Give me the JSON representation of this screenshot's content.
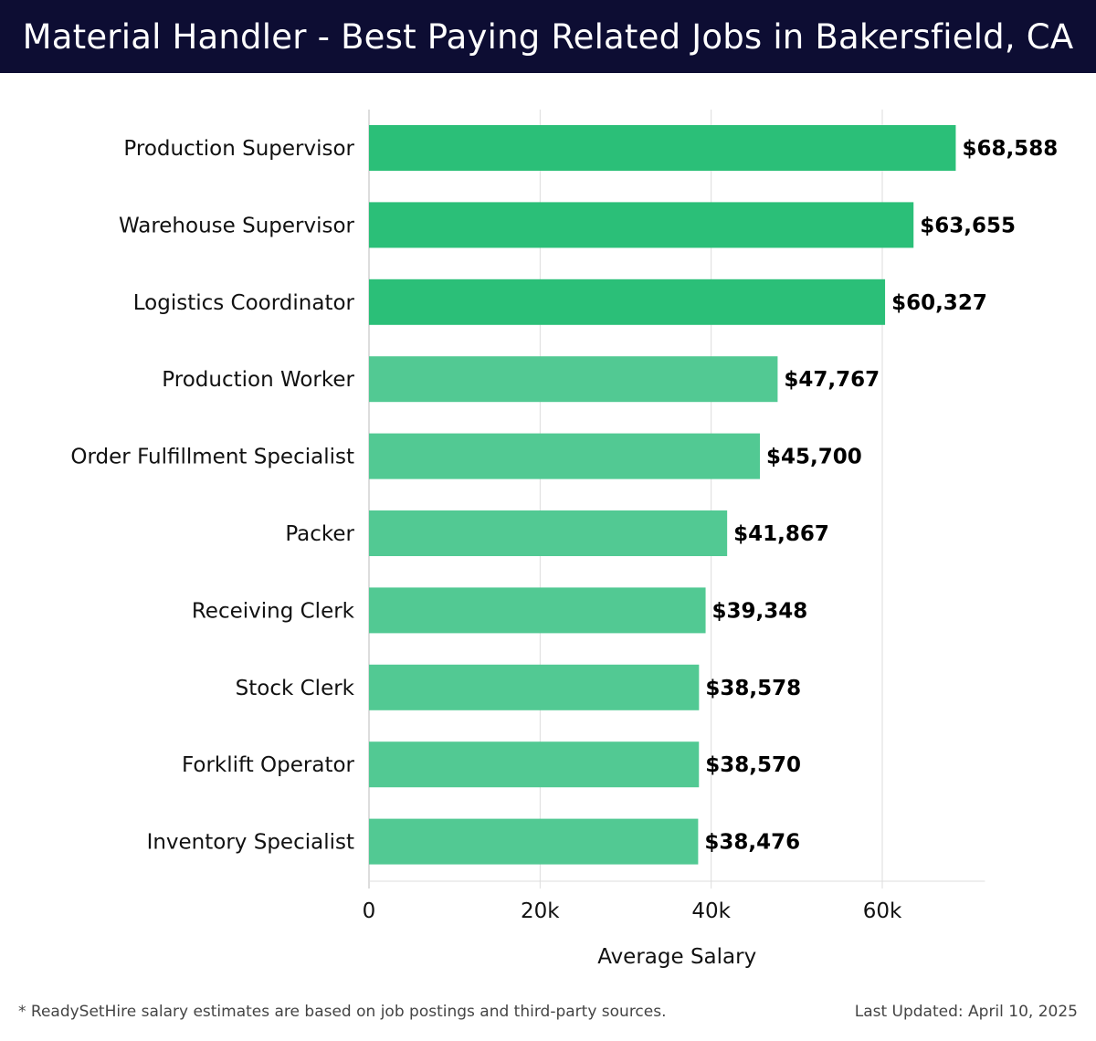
{
  "header": {
    "title": "Material Handler - Best Paying Related Jobs in Bakersfield, CA"
  },
  "footer": {
    "note": "* ReadySetHire salary estimates are based on job postings and third-party sources.",
    "updated": "Last Updated: April 10, 2025"
  },
  "colors": {
    "highlight_bar": "#2bbf78",
    "regular_bar": "#52c993",
    "header_bg": "#0d0d33",
    "grid": "#dddddd"
  },
  "chart_data": {
    "type": "bar",
    "orientation": "horizontal",
    "categories": [
      "Production Supervisor",
      "Warehouse Supervisor",
      "Logistics Coordinator",
      "Production Worker",
      "Order Fulfillment Specialist",
      "Packer",
      "Receiving Clerk",
      "Stock Clerk",
      "Forklift Operator",
      "Inventory Specialist"
    ],
    "values": [
      68588,
      63655,
      60327,
      47767,
      45700,
      41867,
      39348,
      38578,
      38570,
      38476
    ],
    "value_labels": [
      "$68,588",
      "$63,655",
      "$60,327",
      "$47,767",
      "$45,700",
      "$41,867",
      "$39,348",
      "$38,578",
      "$38,570",
      "$38,476"
    ],
    "highlighted_count": 3,
    "xlabel": "Average Salary",
    "ylabel": "",
    "xlim": [
      0,
      72000
    ],
    "xticks": [
      0,
      20000,
      40000,
      60000
    ],
    "xtick_labels": [
      "0",
      "20k",
      "40k",
      "60k"
    ],
    "grid": "vertical"
  }
}
